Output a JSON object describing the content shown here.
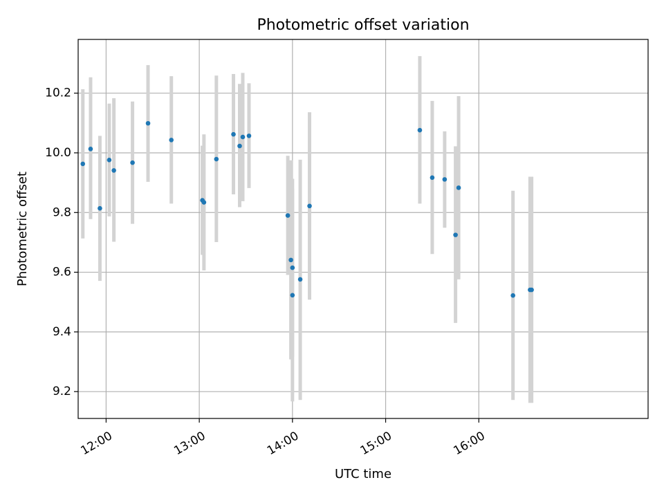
{
  "chart_data": {
    "type": "scatter",
    "title": "Photometric offset variation",
    "xlabel": "UTC time",
    "ylabel": "Photometric offset",
    "x_unit": "UTC time (HH:MM)",
    "xlim": [
      "11:42",
      "17:49"
    ],
    "ylim": [
      9.11,
      10.38
    ],
    "x_ticks": [
      "12:00",
      "13:00",
      "14:00",
      "15:00",
      "16:00"
    ],
    "y_ticks": [
      "9.2",
      "9.4",
      "9.6",
      "9.8",
      "10.0",
      "10.2"
    ],
    "grid": true,
    "colors": {
      "points": "#1f77b4",
      "errorbars": "#d3d3d3",
      "grid": "#b0b0b0",
      "axes": "#000000"
    },
    "points": [
      {
        "x": "11:45",
        "y": 9.963,
        "lo": 9.713,
        "hi": 10.213
      },
      {
        "x": "11:50",
        "y": 10.013,
        "lo": 9.778,
        "hi": 10.253
      },
      {
        "x": "11:56",
        "y": 9.814,
        "lo": 9.571,
        "hi": 10.057
      },
      {
        "x": "12:02",
        "y": 9.976,
        "lo": 9.787,
        "hi": 10.165
      },
      {
        "x": "12:05",
        "y": 9.941,
        "lo": 9.702,
        "hi": 10.183
      },
      {
        "x": "12:17",
        "y": 9.967,
        "lo": 9.762,
        "hi": 10.172
      },
      {
        "x": "12:27",
        "y": 10.099,
        "lo": 9.903,
        "hi": 10.294
      },
      {
        "x": "12:42",
        "y": 10.043,
        "lo": 9.83,
        "hi": 10.257
      },
      {
        "x": "13:02",
        "y": 9.841,
        "lo": 9.658,
        "hi": 10.024
      },
      {
        "x": "13:03",
        "y": 9.834,
        "lo": 9.606,
        "hi": 10.062
      },
      {
        "x": "13:11",
        "y": 9.979,
        "lo": 9.701,
        "hi": 10.259
      },
      {
        "x": "13:22",
        "y": 10.062,
        "lo": 9.861,
        "hi": 10.264
      },
      {
        "x": "13:26",
        "y": 10.023,
        "lo": 9.818,
        "hi": 10.231
      },
      {
        "x": "13:28",
        "y": 10.053,
        "lo": 9.838,
        "hi": 10.268
      },
      {
        "x": "13:32",
        "y": 10.057,
        "lo": 9.882,
        "hi": 10.233
      },
      {
        "x": "13:57",
        "y": 9.79,
        "lo": 9.591,
        "hi": 9.99
      },
      {
        "x": "13:59",
        "y": 9.641,
        "lo": 9.308,
        "hi": 9.975
      },
      {
        "x": "14:00",
        "y": 9.523,
        "lo": 9.167,
        "hi": 9.88
      },
      {
        "x": "14:00",
        "y": 9.615,
        "lo": 9.318,
        "hi": 9.913
      },
      {
        "x": "14:05",
        "y": 9.576,
        "lo": 9.172,
        "hi": 9.977
      },
      {
        "x": "14:11",
        "y": 9.822,
        "lo": 9.508,
        "hi": 10.136
      },
      {
        "x": "15:22",
        "y": 10.076,
        "lo": 9.83,
        "hi": 10.324
      },
      {
        "x": "15:30",
        "y": 9.917,
        "lo": 9.661,
        "hi": 10.174
      },
      {
        "x": "15:38",
        "y": 9.911,
        "lo": 9.749,
        "hi": 10.072
      },
      {
        "x": "15:45",
        "y": 9.725,
        "lo": 9.43,
        "hi": 10.022
      },
      {
        "x": "15:47",
        "y": 9.883,
        "lo": 9.576,
        "hi": 10.19
      },
      {
        "x": "16:22",
        "y": 9.522,
        "lo": 9.172,
        "hi": 9.873
      },
      {
        "x": "16:33",
        "y": 9.541,
        "lo": 9.162,
        "hi": 9.92
      },
      {
        "x": "16:34",
        "y": 9.541,
        "lo": 9.162,
        "hi": 9.92
      }
    ]
  }
}
